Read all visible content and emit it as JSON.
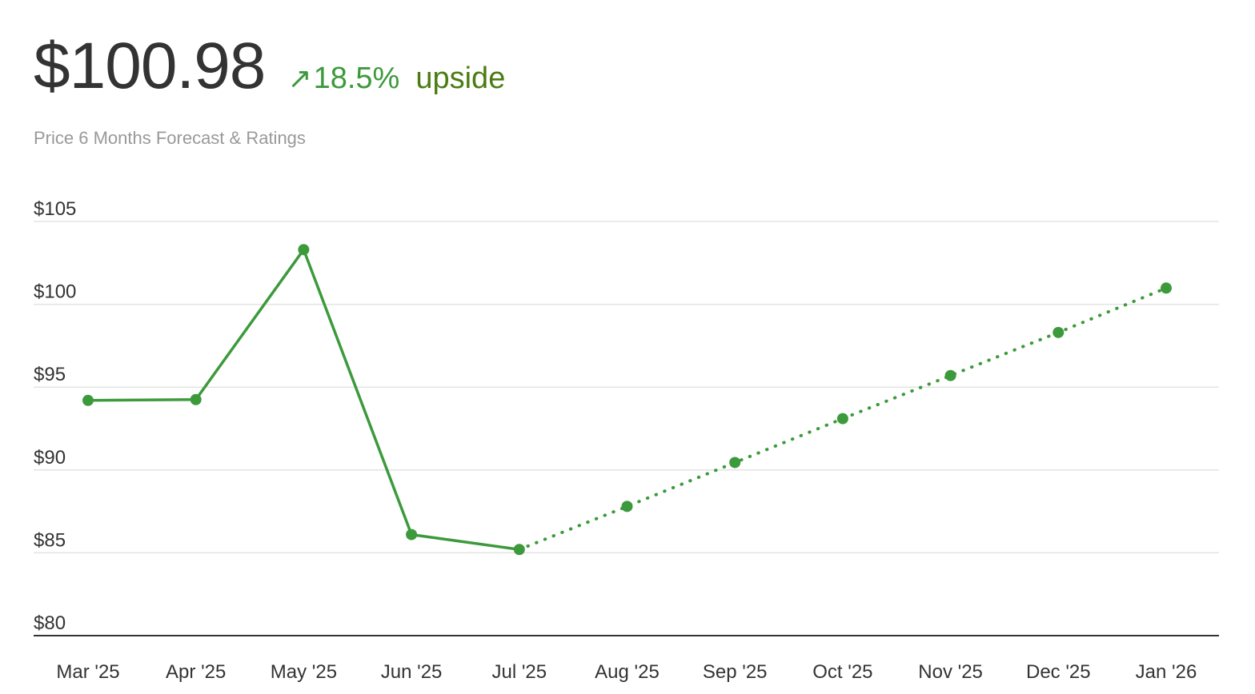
{
  "header": {
    "price": "$100.98",
    "change_arrow": "↗",
    "change_pct": "18.5%",
    "change_label": "upside",
    "subtitle": "Price 6 Months Forecast & Ratings"
  },
  "colors": {
    "line": "#3c9a3c",
    "grid": "#e3e3e3",
    "axis": "#333333",
    "upside_label": "#4a7c12"
  },
  "chart_data": {
    "type": "line",
    "categories": [
      "Mar '25",
      "Apr '25",
      "May '25",
      "Jun '25",
      "Jul '25",
      "Aug '25",
      "Sep '25",
      "Oct '25",
      "Nov '25",
      "Dec '25",
      "Jan '26"
    ],
    "series": [
      {
        "style": "solid",
        "points": [
          {
            "x": "Mar '25",
            "y": 94.2
          },
          {
            "x": "Apr '25",
            "y": 94.25
          },
          {
            "x": "May '25",
            "y": 103.3
          },
          {
            "x": "Jun '25",
            "y": 86.1
          },
          {
            "x": "Jul '25",
            "y": 85.2
          }
        ]
      },
      {
        "style": "dotted",
        "points": [
          {
            "x": "Jul '25",
            "y": 85.2
          },
          {
            "x": "Aug '25",
            "y": 87.8
          },
          {
            "x": "Sep '25",
            "y": 90.45
          },
          {
            "x": "Oct '25",
            "y": 93.1
          },
          {
            "x": "Nov '25",
            "y": 95.7
          },
          {
            "x": "Dec '25",
            "y": 98.3
          },
          {
            "x": "Jan '26",
            "y": 100.98
          }
        ]
      }
    ],
    "y_ticks": [
      {
        "value": 105,
        "label": "$105"
      },
      {
        "value": 100,
        "label": "$100"
      },
      {
        "value": 95,
        "label": "$95"
      },
      {
        "value": 90,
        "label": "$90"
      },
      {
        "value": 85,
        "label": "$85"
      },
      {
        "value": 80,
        "label": "$80"
      }
    ],
    "ylim": [
      80,
      105
    ],
    "grid": true
  }
}
